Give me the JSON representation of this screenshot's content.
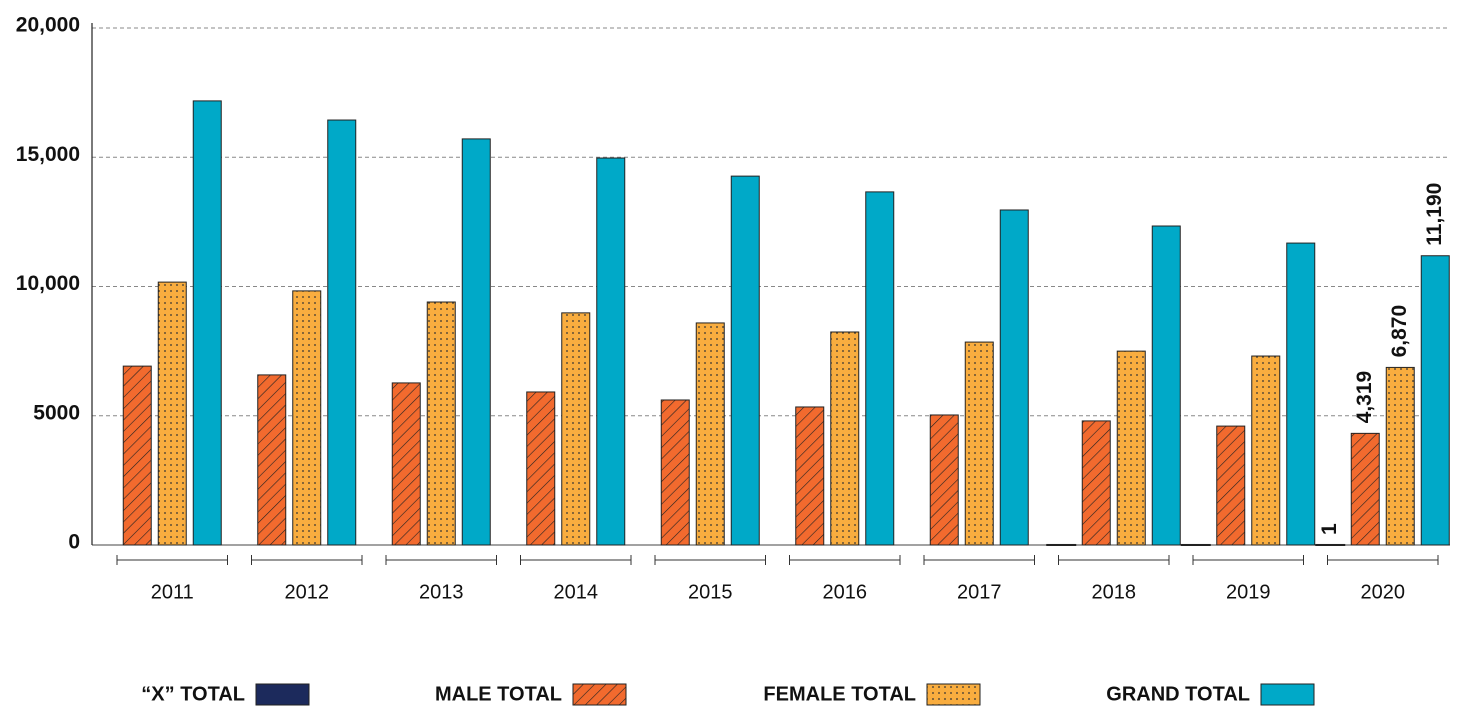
{
  "chart_data": {
    "type": "bar",
    "categories": [
      "2011",
      "2012",
      "2013",
      "2014",
      "2015",
      "2016",
      "2017",
      "2018",
      "2019",
      "2020"
    ],
    "series": [
      {
        "name": "“X” TOTAL",
        "color": "#1c2a5c",
        "values": [
          null,
          null,
          null,
          null,
          null,
          null,
          null,
          1,
          1,
          1
        ],
        "value_labels": [
          null,
          null,
          null,
          null,
          null,
          null,
          null,
          null,
          null,
          "1"
        ]
      },
      {
        "name": "MALE TOTAL",
        "color": "#f26a2e",
        "pattern": "hatch",
        "values": [
          6920,
          6580,
          6270,
          5920,
          5610,
          5340,
          5030,
          4800,
          4600,
          4319
        ],
        "value_labels": [
          null,
          null,
          null,
          null,
          null,
          null,
          null,
          null,
          null,
          "4,319"
        ]
      },
      {
        "name": "FEMALE TOTAL",
        "color": "#f9ad3f",
        "pattern": "dots",
        "values": [
          10170,
          9830,
          9400,
          8980,
          8590,
          8240,
          7850,
          7500,
          7310,
          6870
        ],
        "value_labels": [
          null,
          null,
          null,
          null,
          null,
          null,
          null,
          null,
          null,
          "6,870"
        ]
      },
      {
        "name": "GRAND TOTAL",
        "color": "#00a9c8",
        "values": [
          17180,
          16440,
          15710,
          14970,
          14270,
          13660,
          12960,
          12340,
          11680,
          11190
        ],
        "value_labels": [
          null,
          null,
          null,
          null,
          null,
          null,
          null,
          null,
          null,
          "11,190"
        ]
      }
    ],
    "ylim": [
      0,
      20000
    ],
    "yticks": [
      0,
      5000,
      {
        "value": 10000,
        "label": "10,000"
      },
      {
        "value": 15000,
        "label": "15,000"
      },
      {
        "value": 20000,
        "label": "20,000"
      }
    ],
    "grid": true
  }
}
